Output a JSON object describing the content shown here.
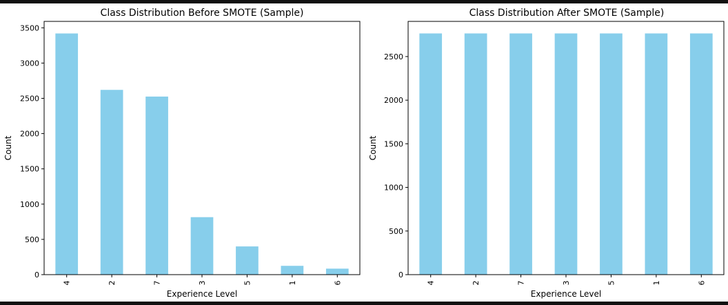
{
  "chart_data": [
    {
      "type": "bar",
      "title": "Class Distribution Before SMOTE (Sample)",
      "xlabel": "Experience Level",
      "ylabel": "Count",
      "categories": [
        "4",
        "2",
        "7",
        "3",
        "5",
        "1",
        "6"
      ],
      "values": [
        3420,
        2620,
        2525,
        815,
        400,
        125,
        85
      ],
      "ylim": [
        0,
        3591
      ],
      "yticks": [
        0,
        500,
        1000,
        1500,
        2000,
        2500,
        3000,
        3500
      ],
      "color": "#87ceeb",
      "grid": false
    },
    {
      "type": "bar",
      "title": "Class Distribution After SMOTE (Sample)",
      "xlabel": "Experience Level",
      "ylabel": "Count",
      "categories": [
        "4",
        "2",
        "7",
        "3",
        "5",
        "1",
        "6"
      ],
      "values": [
        2765,
        2765,
        2765,
        2765,
        2765,
        2765,
        2765
      ],
      "ylim": [
        0,
        2903
      ],
      "yticks": [
        0,
        500,
        1000,
        1500,
        2000,
        2500
      ],
      "color": "#87ceeb",
      "grid": false
    }
  ]
}
